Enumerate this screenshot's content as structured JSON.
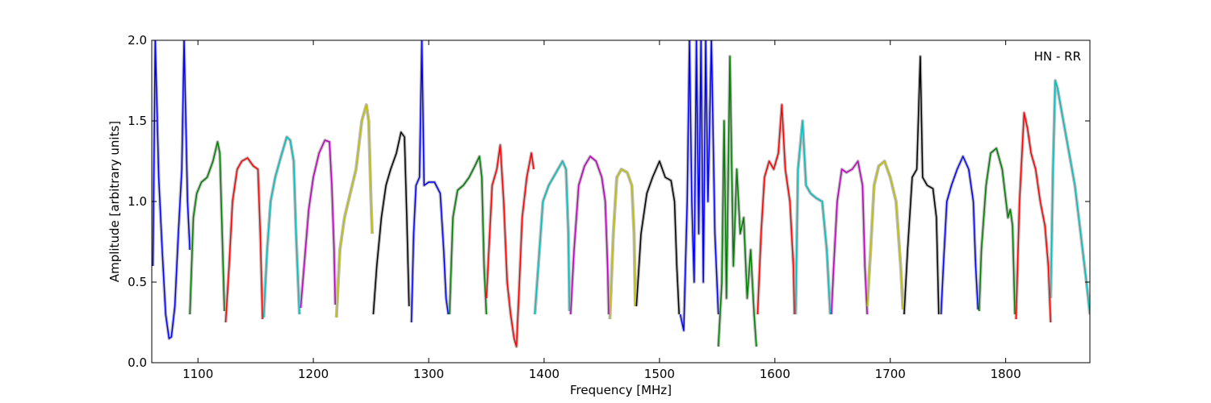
{
  "chart_data": {
    "type": "line",
    "title": "",
    "annotation": "HN - RR",
    "xlabel": "Frequency [MHz]",
    "ylabel": "Amplitude [arbitrary units]",
    "xlim": [
      1060,
      1873
    ],
    "ylim": [
      0.0,
      2.0
    ],
    "x_ticks": [
      1100,
      1200,
      1300,
      1400,
      1500,
      1600,
      1700,
      1800
    ],
    "x_tick_labels": [
      "1100",
      "1200",
      "1300",
      "1400",
      "1500",
      "1600",
      "1700",
      "1800"
    ],
    "y_ticks": [
      0.0,
      0.5,
      1.0,
      1.5,
      2.0
    ],
    "y_tick_labels": [
      "0.0",
      "0.5",
      "1.0",
      "1.5",
      "2.0"
    ],
    "grid": false,
    "background_color": "#bebebe",
    "colors": {
      "b": "#0000ff",
      "g": "#008000",
      "r": "#ff0000",
      "c": "#00bfbf",
      "m": "#bf00bf",
      "y": "#bfbf00",
      "k": "#000000"
    },
    "series": [
      {
        "color": "b",
        "x": [
          1061,
          1063,
          1066,
          1069,
          1072,
          1075,
          1077,
          1080,
          1083,
          1086,
          1088,
          1091,
          1093
        ],
        "y": [
          0.6,
          2.0,
          1.15,
          0.7,
          0.3,
          0.15,
          0.16,
          0.35,
          0.8,
          1.2,
          2.0,
          1.0,
          0.7
        ]
      },
      {
        "color": "g",
        "x": [
          1093,
          1096,
          1099,
          1103,
          1108,
          1113,
          1117,
          1119,
          1121,
          1123
        ],
        "y": [
          0.3,
          0.9,
          1.05,
          1.12,
          1.15,
          1.25,
          1.37,
          1.3,
          0.8,
          0.32
        ]
      },
      {
        "color": "r",
        "x": [
          1124,
          1127,
          1130,
          1134,
          1138,
          1143,
          1148,
          1152,
          1154,
          1156
        ],
        "y": [
          0.25,
          0.6,
          1.0,
          1.2,
          1.25,
          1.27,
          1.22,
          1.2,
          0.8,
          0.27
        ]
      },
      {
        "color": "c",
        "x": [
          1157,
          1160,
          1163,
          1167,
          1172,
          1177,
          1180,
          1183,
          1185,
          1188
        ],
        "y": [
          0.28,
          0.7,
          1.0,
          1.15,
          1.28,
          1.4,
          1.38,
          1.25,
          0.8,
          0.3
        ]
      },
      {
        "color": "m",
        "x": [
          1189,
          1192,
          1196,
          1200,
          1205,
          1210,
          1214,
          1216,
          1218,
          1219
        ],
        "y": [
          0.34,
          0.6,
          0.95,
          1.15,
          1.3,
          1.38,
          1.37,
          1.1,
          0.7,
          0.36
        ]
      },
      {
        "color": "y",
        "x": [
          1220,
          1223,
          1227,
          1232,
          1237,
          1242,
          1246,
          1248,
          1250,
          1251
        ],
        "y": [
          0.28,
          0.7,
          0.9,
          1.05,
          1.2,
          1.5,
          1.6,
          1.5,
          1.0,
          0.8
        ]
      },
      {
        "color": "k",
        "x": [
          1252,
          1255,
          1259,
          1263,
          1267,
          1272,
          1276,
          1279,
          1281,
          1283
        ],
        "y": [
          0.3,
          0.6,
          0.9,
          1.1,
          1.2,
          1.3,
          1.43,
          1.4,
          0.9,
          0.35
        ]
      },
      {
        "color": "b",
        "x": [
          1285,
          1287,
          1289,
          1292,
          1294,
          1296,
          1300,
          1305,
          1310,
          1313,
          1315,
          1317
        ],
        "y": [
          0.25,
          0.8,
          1.1,
          1.15,
          2.0,
          1.1,
          1.12,
          1.12,
          1.05,
          0.7,
          0.4,
          0.3
        ]
      },
      {
        "color": "g",
        "x": [
          1318,
          1321,
          1325,
          1330,
          1335,
          1340,
          1344,
          1346,
          1348,
          1350
        ],
        "y": [
          0.3,
          0.9,
          1.07,
          1.1,
          1.15,
          1.22,
          1.28,
          1.15,
          0.6,
          0.3
        ]
      },
      {
        "color": "r",
        "x": [
          1350,
          1355,
          1359,
          1362,
          1365,
          1368,
          1371,
          1374,
          1376,
          1378,
          1381,
          1385,
          1389,
          1391
        ],
        "y": [
          0.4,
          1.1,
          1.2,
          1.35,
          1.0,
          0.5,
          0.3,
          0.15,
          0.1,
          0.4,
          0.9,
          1.15,
          1.3,
          1.2
        ]
      },
      {
        "color": "c",
        "x": [
          1392,
          1395,
          1399,
          1404,
          1408,
          1412,
          1416,
          1419,
          1421,
          1422
        ],
        "y": [
          0.3,
          0.6,
          1.0,
          1.1,
          1.15,
          1.2,
          1.25,
          1.2,
          0.8,
          0.32
        ]
      },
      {
        "color": "m",
        "x": [
          1423,
          1426,
          1430,
          1435,
          1440,
          1445,
          1450,
          1453,
          1455,
          1456
        ],
        "y": [
          0.3,
          0.7,
          1.1,
          1.22,
          1.28,
          1.25,
          1.15,
          1.0,
          0.6,
          0.3
        ]
      },
      {
        "color": "y",
        "x": [
          1457,
          1460,
          1463,
          1467,
          1472,
          1476,
          1478,
          1479
        ],
        "y": [
          0.27,
          0.8,
          1.15,
          1.2,
          1.18,
          1.1,
          0.8,
          0.35
        ]
      },
      {
        "color": "k",
        "x": [
          1480,
          1484,
          1489,
          1494,
          1500,
          1505,
          1510,
          1513,
          1515,
          1517
        ],
        "y": [
          0.35,
          0.8,
          1.05,
          1.15,
          1.25,
          1.15,
          1.13,
          1.0,
          0.6,
          0.3
        ]
      },
      {
        "color": "b",
        "x": [
          1518,
          1521,
          1524,
          1526,
          1528,
          1530,
          1532,
          1534,
          1536,
          1538,
          1540,
          1542,
          1545,
          1548,
          1551
        ],
        "y": [
          0.3,
          0.2,
          1.0,
          2.0,
          1.0,
          0.5,
          2.0,
          0.8,
          2.0,
          0.5,
          2.0,
          1.0,
          2.0,
          0.8,
          0.3
        ]
      },
      {
        "color": "g",
        "x": [
          1551,
          1554,
          1556,
          1558,
          1561,
          1564,
          1567,
          1570,
          1573,
          1576,
          1579,
          1582,
          1584
        ],
        "y": [
          0.1,
          0.5,
          1.5,
          0.4,
          1.9,
          0.6,
          1.2,
          0.8,
          0.9,
          0.4,
          0.7,
          0.3,
          0.1
        ]
      },
      {
        "color": "r",
        "x": [
          1585,
          1588,
          1591,
          1595,
          1599,
          1603,
          1606,
          1609,
          1613,
          1616,
          1617
        ],
        "y": [
          0.3,
          0.8,
          1.15,
          1.25,
          1.2,
          1.3,
          1.6,
          1.2,
          1.0,
          0.6,
          0.3
        ]
      },
      {
        "color": "c",
        "x": [
          1618,
          1620,
          1622,
          1624,
          1627,
          1631,
          1636,
          1641,
          1645,
          1648
        ],
        "y": [
          0.3,
          1.2,
          1.35,
          1.5,
          1.1,
          1.05,
          1.02,
          1.0,
          0.7,
          0.3
        ]
      },
      {
        "color": "m",
        "x": [
          1649,
          1651,
          1654,
          1658,
          1662,
          1667,
          1672,
          1676,
          1678,
          1680
        ],
        "y": [
          0.3,
          0.6,
          1.0,
          1.2,
          1.18,
          1.2,
          1.25,
          1.1,
          0.6,
          0.3
        ]
      },
      {
        "color": "y",
        "x": [
          1680,
          1683,
          1686,
          1690,
          1695,
          1700,
          1705,
          1709,
          1711
        ],
        "y": [
          0.35,
          0.7,
          1.1,
          1.22,
          1.25,
          1.15,
          1.0,
          0.6,
          0.33
        ]
      },
      {
        "color": "k",
        "x": [
          1712,
          1715,
          1719,
          1723,
          1726,
          1728,
          1732,
          1737,
          1740,
          1742
        ],
        "y": [
          0.3,
          0.7,
          1.15,
          1.2,
          1.9,
          1.15,
          1.1,
          1.08,
          0.9,
          0.3
        ]
      },
      {
        "color": "b",
        "x": [
          1744,
          1746,
          1749,
          1753,
          1758,
          1763,
          1768,
          1772,
          1774,
          1776
        ],
        "y": [
          0.3,
          0.6,
          1.0,
          1.1,
          1.2,
          1.28,
          1.2,
          1.0,
          0.6,
          0.33
        ]
      },
      {
        "color": "g",
        "x": [
          1777,
          1779,
          1783,
          1787,
          1792,
          1797,
          1802,
          1804,
          1806,
          1808
        ],
        "y": [
          0.32,
          0.7,
          1.1,
          1.3,
          1.33,
          1.2,
          0.9,
          0.95,
          0.85,
          0.3
        ]
      },
      {
        "color": "r",
        "x": [
          1809,
          1812,
          1816,
          1819,
          1822,
          1826,
          1830,
          1834,
          1837,
          1839
        ],
        "y": [
          0.27,
          1.0,
          1.55,
          1.45,
          1.3,
          1.2,
          1.0,
          0.85,
          0.6,
          0.25
        ]
      },
      {
        "color": "c",
        "x": [
          1839,
          1841,
          1843,
          1845,
          1850,
          1855,
          1860,
          1865,
          1870,
          1873
        ],
        "y": [
          0.4,
          1.2,
          1.75,
          1.7,
          1.5,
          1.3,
          1.1,
          0.8,
          0.5,
          0.3
        ]
      }
    ]
  }
}
